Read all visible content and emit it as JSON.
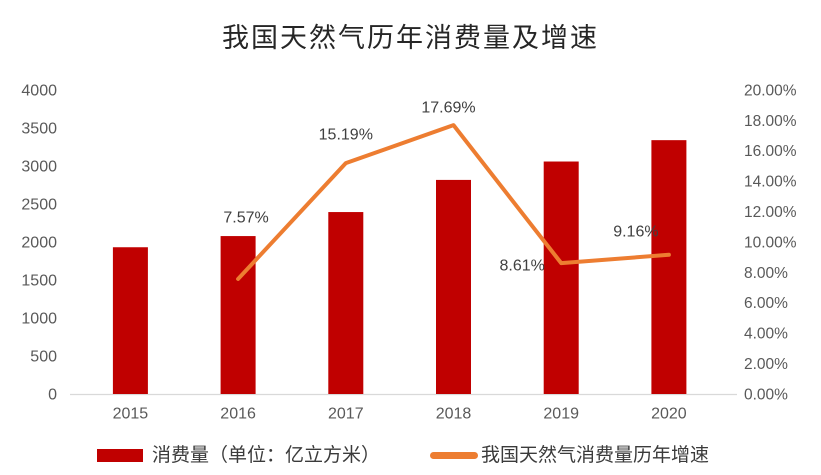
{
  "chart_data": {
    "type": "bar+line",
    "title": "我国天然气历年消费量及增速",
    "categories": [
      "2015",
      "2016",
      "2017",
      "2018",
      "2019",
      "2020"
    ],
    "series": [
      {
        "name": "消费量（单位：亿立方米）",
        "type": "bar",
        "axis": "left",
        "color": "#c00000",
        "values": [
          1931,
          2078,
          2394,
          2817,
          3059,
          3340
        ]
      },
      {
        "name": "我国天然气消费量历年增速",
        "type": "line",
        "axis": "right",
        "color": "#ed7d31",
        "values": [
          null,
          7.57,
          15.19,
          17.69,
          8.61,
          9.16
        ],
        "point_labels": [
          null,
          "7.57%",
          "15.19%",
          "17.69%",
          "8.61%",
          "9.16%"
        ],
        "label_offsets": [
          null,
          {
            "dx": 8,
            "dy": -62
          },
          {
            "dx": 0,
            "dy": -29
          },
          {
            "dx": -5,
            "dy": -18
          },
          {
            "dx": -39,
            "dy": 2
          },
          {
            "dx": -33,
            "dy": -24
          }
        ]
      }
    ],
    "left_axis": {
      "min": 0,
      "max": 4000,
      "tick_labels": [
        "0",
        "500",
        "1000",
        "1500",
        "2000",
        "2500",
        "3000",
        "3500",
        "4000"
      ]
    },
    "right_axis": {
      "min": 0,
      "max": 20,
      "tick_labels": [
        "0.00%",
        "2.00%",
        "4.00%",
        "6.00%",
        "8.00%",
        "10.00%",
        "12.00%",
        "14.00%",
        "16.00%",
        "18.00%",
        "20.00%"
      ]
    },
    "grid": "off",
    "legend_position": "bottom",
    "colors": {
      "axis_text": "#595959",
      "data_label_text": "#404040",
      "title_text": "#262626",
      "baseline": "#d9d9d9"
    }
  }
}
